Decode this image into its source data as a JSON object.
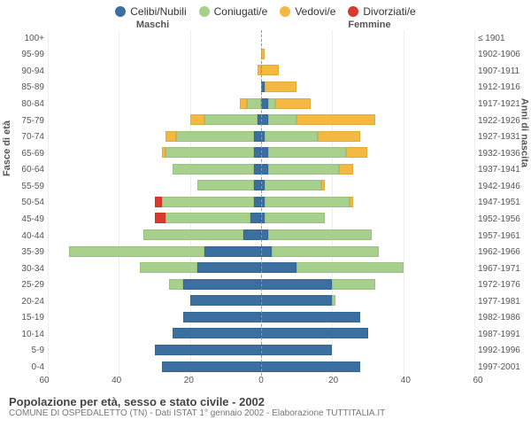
{
  "type": "population-pyramid",
  "legend": [
    {
      "label": "Celibi/Nubili",
      "color": "#3b6fa0"
    },
    {
      "label": "Coniugati/e",
      "color": "#a8d08d"
    },
    {
      "label": "Vedovi/e",
      "color": "#f4b942"
    },
    {
      "label": "Divorziati/e",
      "color": "#d93a2b"
    }
  ],
  "header": {
    "male": "Maschi",
    "female": "Femmine"
  },
  "axis_left_label": "Fasce di età",
  "axis_right_label": "Anni di nascita",
  "xmax": 60,
  "xticks": [
    60,
    40,
    20,
    0,
    20,
    40,
    60
  ],
  "background_color": "#ffffff",
  "grid_color": "#eeeeee",
  "age_groups": [
    "100+",
    "95-99",
    "90-94",
    "85-89",
    "80-84",
    "75-79",
    "70-74",
    "65-69",
    "60-64",
    "55-59",
    "50-54",
    "45-49",
    "40-44",
    "35-39",
    "30-34",
    "25-29",
    "20-24",
    "15-19",
    "10-14",
    "5-9",
    "0-4"
  ],
  "birth_years": [
    "≤ 1901",
    "1902-1906",
    "1907-1911",
    "1912-1916",
    "1917-1921",
    "1922-1926",
    "1927-1931",
    "1932-1936",
    "1937-1941",
    "1942-1946",
    "1947-1951",
    "1952-1956",
    "1957-1961",
    "1962-1966",
    "1967-1971",
    "1972-1976",
    "1977-1981",
    "1982-1986",
    "1987-1991",
    "1992-1996",
    "1997-2001"
  ],
  "male": [
    {
      "cel": 0,
      "con": 0,
      "ved": 0,
      "div": 0
    },
    {
      "cel": 0,
      "con": 0,
      "ved": 0,
      "div": 0
    },
    {
      "cel": 0,
      "con": 0,
      "ved": 1,
      "div": 0
    },
    {
      "cel": 0,
      "con": 0,
      "ved": 0,
      "div": 0
    },
    {
      "cel": 0,
      "con": 4,
      "ved": 2,
      "div": 0
    },
    {
      "cel": 1,
      "con": 15,
      "ved": 4,
      "div": 0
    },
    {
      "cel": 2,
      "con": 22,
      "ved": 3,
      "div": 0
    },
    {
      "cel": 2,
      "con": 25,
      "ved": 1,
      "div": 0
    },
    {
      "cel": 2,
      "con": 23,
      "ved": 0,
      "div": 0
    },
    {
      "cel": 2,
      "con": 16,
      "ved": 0,
      "div": 0
    },
    {
      "cel": 2,
      "con": 26,
      "ved": 0,
      "div": 2
    },
    {
      "cel": 3,
      "con": 24,
      "ved": 0,
      "div": 3
    },
    {
      "cel": 5,
      "con": 28,
      "ved": 0,
      "div": 0
    },
    {
      "cel": 16,
      "con": 38,
      "ved": 0,
      "div": 0
    },
    {
      "cel": 18,
      "con": 16,
      "ved": 0,
      "div": 0
    },
    {
      "cel": 22,
      "con": 4,
      "ved": 0,
      "div": 0
    },
    {
      "cel": 20,
      "con": 0,
      "ved": 0,
      "div": 0
    },
    {
      "cel": 22,
      "con": 0,
      "ved": 0,
      "div": 0
    },
    {
      "cel": 25,
      "con": 0,
      "ved": 0,
      "div": 0
    },
    {
      "cel": 30,
      "con": 0,
      "ved": 0,
      "div": 0
    },
    {
      "cel": 28,
      "con": 0,
      "ved": 0,
      "div": 0
    }
  ],
  "female": [
    {
      "cel": 0,
      "con": 0,
      "ved": 0,
      "div": 0
    },
    {
      "cel": 0,
      "con": 0,
      "ved": 1,
      "div": 0
    },
    {
      "cel": 0,
      "con": 0,
      "ved": 5,
      "div": 0
    },
    {
      "cel": 1,
      "con": 0,
      "ved": 9,
      "div": 0
    },
    {
      "cel": 2,
      "con": 2,
      "ved": 10,
      "div": 0
    },
    {
      "cel": 2,
      "con": 8,
      "ved": 22,
      "div": 0
    },
    {
      "cel": 1,
      "con": 15,
      "ved": 12,
      "div": 0
    },
    {
      "cel": 2,
      "con": 22,
      "ved": 6,
      "div": 0
    },
    {
      "cel": 2,
      "con": 20,
      "ved": 4,
      "div": 0
    },
    {
      "cel": 1,
      "con": 16,
      "ved": 1,
      "div": 0
    },
    {
      "cel": 1,
      "con": 24,
      "ved": 1,
      "div": 0
    },
    {
      "cel": 1,
      "con": 17,
      "ved": 0,
      "div": 0
    },
    {
      "cel": 2,
      "con": 29,
      "ved": 0,
      "div": 0
    },
    {
      "cel": 3,
      "con": 30,
      "ved": 0,
      "div": 0
    },
    {
      "cel": 10,
      "con": 30,
      "ved": 0,
      "div": 0
    },
    {
      "cel": 20,
      "con": 12,
      "ved": 0,
      "div": 0
    },
    {
      "cel": 20,
      "con": 1,
      "ved": 0,
      "div": 0
    },
    {
      "cel": 28,
      "con": 0,
      "ved": 0,
      "div": 0
    },
    {
      "cel": 30,
      "con": 0,
      "ved": 0,
      "div": 0
    },
    {
      "cel": 20,
      "con": 0,
      "ved": 0,
      "div": 0
    },
    {
      "cel": 28,
      "con": 0,
      "ved": 0,
      "div": 0
    }
  ],
  "title": "Popolazione per età, sesso e stato civile - 2002",
  "subtitle": "COMUNE DI OSPEDALETTO (TN) - Dati ISTAT 1° gennaio 2002 - Elaborazione TUTTITALIA.IT"
}
